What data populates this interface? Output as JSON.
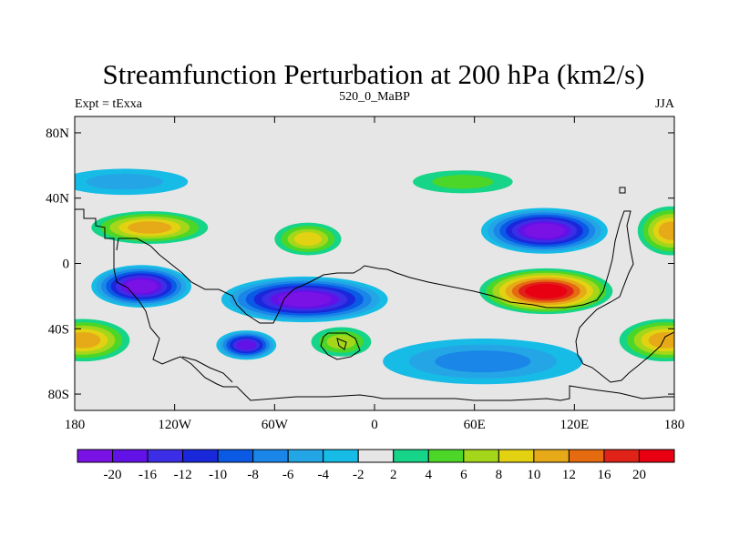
{
  "chart_data": {
    "type": "heatmap",
    "title": "Streamfunction Perturbation at 200 hPa (km2/s)",
    "left_string": "Expt = tExxa",
    "center_string": "520_0_MaBP",
    "right_string": "JJA",
    "projection": "cylindrical equidistant",
    "x_range": [
      -180,
      180
    ],
    "y_range": [
      -90,
      90
    ],
    "x_ticks": [
      {
        "value": -180,
        "label": "180"
      },
      {
        "value": -120,
        "label": "120W"
      },
      {
        "value": -60,
        "label": "60W"
      },
      {
        "value": 0,
        "label": "0"
      },
      {
        "value": 60,
        "label": "60E"
      },
      {
        "value": 120,
        "label": "120E"
      },
      {
        "value": 180,
        "label": "180"
      }
    ],
    "y_ticks": [
      {
        "value": 80,
        "label": "80N"
      },
      {
        "value": 40,
        "label": "40N"
      },
      {
        "value": 0,
        "label": "0"
      },
      {
        "value": -40,
        "label": "40S"
      },
      {
        "value": -80,
        "label": "80S"
      }
    ],
    "colorbar": {
      "levels": [
        -20,
        -16,
        -12,
        -10,
        -8,
        -6,
        -4,
        -2,
        2,
        4,
        6,
        8,
        10,
        12,
        16,
        20
      ],
      "labels": [
        "-20",
        "-16",
        "-12",
        "-10",
        "-8",
        "-6",
        "-4",
        "-2",
        "2",
        "4",
        "6",
        "8",
        "10",
        "12",
        "16",
        "20"
      ],
      "colors": [
        "#7a12e6",
        "#6212e6",
        "#3c2ee6",
        "#1a28dc",
        "#0a5ae6",
        "#1a86e8",
        "#24a6e6",
        "#16bce6",
        "#e6e6e6",
        "#16d488",
        "#4cd628",
        "#a4d61a",
        "#e2d212",
        "#e6aa18",
        "#e66a10",
        "#e02218",
        "#e80012"
      ]
    },
    "features": [
      {
        "sign": "negative",
        "value": -20,
        "center_lon": -140,
        "center_lat": -14,
        "lon_half_width": 30,
        "lat_half_width": 13
      },
      {
        "sign": "negative",
        "value": -20,
        "center_lon": -42,
        "center_lat": -22,
        "lon_half_width": 50,
        "lat_half_width": 14
      },
      {
        "sign": "negative",
        "value": -16,
        "center_lon": -77,
        "center_lat": -50,
        "lon_half_width": 18,
        "lat_half_width": 9
      },
      {
        "sign": "negative",
        "value": -20,
        "center_lon": 102,
        "center_lat": 20,
        "lon_half_width": 38,
        "lat_half_width": 14
      },
      {
        "sign": "negative",
        "value": -6,
        "center_lon": 65,
        "center_lat": -60,
        "lon_half_width": 60,
        "lat_half_width": 14
      },
      {
        "sign": "negative",
        "value": -4,
        "center_lon": -150,
        "center_lat": 50,
        "lon_half_width": 38,
        "lat_half_width": 8
      },
      {
        "sign": "positive",
        "value": 20,
        "center_lon": 103,
        "center_lat": -17,
        "lon_half_width": 40,
        "lat_half_width": 14
      },
      {
        "sign": "positive",
        "value": 10,
        "center_lon": -135,
        "center_lat": 22,
        "lon_half_width": 35,
        "lat_half_width": 10
      },
      {
        "sign": "positive",
        "value": 10,
        "center_lon": -175,
        "center_lat": -47,
        "lon_half_width": 28,
        "lat_half_width": 13
      },
      {
        "sign": "positive",
        "value": 10,
        "center_lon": 175,
        "center_lat": -47,
        "lon_half_width": 28,
        "lat_half_width": 13
      },
      {
        "sign": "positive",
        "value": 10,
        "center_lon": 178,
        "center_lat": 20,
        "lon_half_width": 20,
        "lat_half_width": 15
      },
      {
        "sign": "positive",
        "value": 8,
        "center_lon": -40,
        "center_lat": 15,
        "lon_half_width": 20,
        "lat_half_width": 10
      },
      {
        "sign": "positive",
        "value": 6,
        "center_lon": -20,
        "center_lat": -48,
        "lon_half_width": 18,
        "lat_half_width": 9
      },
      {
        "sign": "positive",
        "value": 4,
        "center_lon": 53,
        "center_lat": 50,
        "lon_half_width": 30,
        "lat_half_width": 7
      }
    ]
  }
}
